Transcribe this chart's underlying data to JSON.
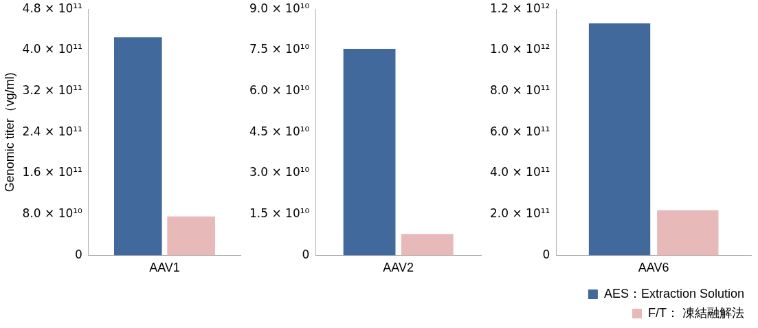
{
  "chart_data": [
    {
      "type": "bar",
      "ylabel": "Genomic titer（vg/ml)",
      "categories": [
        "AAV1"
      ],
      "ylim": [
        0,
        480000000000.0
      ],
      "yticks": [
        {
          "value": 0,
          "label": "0"
        },
        {
          "value": 80000000000.0,
          "label": "8.0 × 10¹⁰"
        },
        {
          "value": 160000000000.0,
          "label": "1.6 × 10¹¹"
        },
        {
          "value": 240000000000.0,
          "label": "2.4 × 10¹¹"
        },
        {
          "value": 320000000000.0,
          "label": "3.2 × 10¹¹"
        },
        {
          "value": 400000000000.0,
          "label": "4.0 × 10¹¹"
        },
        {
          "value": 480000000000.0,
          "label": "4.8 × 10¹¹"
        }
      ],
      "series": [
        {
          "color": "#41699b",
          "values": [
            425000000000.0
          ]
        },
        {
          "color": "#e8b9b9",
          "values": [
            76000000000.0
          ]
        }
      ],
      "grid": false,
      "legend": false
    },
    {
      "type": "bar",
      "categories": [
        "AAV2"
      ],
      "ylim": [
        0,
        90000000000.0
      ],
      "yticks": [
        {
          "value": 0,
          "label": "0"
        },
        {
          "value": 15000000000.0,
          "label": "1.5 × 10¹⁰"
        },
        {
          "value": 30000000000.0,
          "label": "3.0 × 10¹⁰"
        },
        {
          "value": 45000000000.0,
          "label": "4.5 × 10¹⁰"
        },
        {
          "value": 60000000000.0,
          "label": "6.0 × 10¹⁰"
        },
        {
          "value": 75000000000.0,
          "label": "7.5 × 10¹⁰"
        },
        {
          "value": 90000000000.0,
          "label": "9.0 × 10¹⁰"
        }
      ],
      "series": [
        {
          "color": "#41699b",
          "values": [
            75500000000.0
          ]
        },
        {
          "color": "#e8b9b9",
          "values": [
            7800000000.0
          ]
        }
      ],
      "grid": false,
      "legend": false
    },
    {
      "type": "bar",
      "categories": [
        "AAV6"
      ],
      "ylim": [
        0,
        1200000000000.0
      ],
      "yticks": [
        {
          "value": 0,
          "label": "0"
        },
        {
          "value": 200000000000.0,
          "label": "2.0 × 10¹¹"
        },
        {
          "value": 400000000000.0,
          "label": "4.0 × 10¹¹"
        },
        {
          "value": 600000000000.0,
          "label": "6.0 × 10¹¹"
        },
        {
          "value": 800000000000.0,
          "label": "8.0 × 10¹¹"
        },
        {
          "value": 1000000000000.0,
          "label": "1.0 × 10¹²"
        },
        {
          "value": 1200000000000.0,
          "label": "1.2 × 10¹²"
        }
      ],
      "series": [
        {
          "name": "AES：Extraction Solution",
          "color": "#41699b",
          "values": [
            1130000000000.0
          ]
        },
        {
          "name": "F/T： 凍結融解法",
          "color": "#e8b9b9",
          "values": [
            220000000000.0
          ]
        }
      ],
      "grid": false,
      "legend": "bottom right"
    }
  ]
}
